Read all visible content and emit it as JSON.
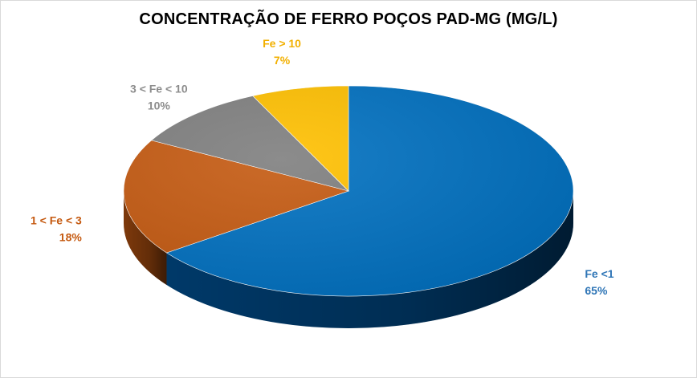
{
  "chart_data": {
    "type": "pie",
    "title": "CONCENTRAÇÃO DE FERRO POÇOS PAD-MG (MG/L)",
    "slices": [
      {
        "label": "Fe <1",
        "value": 65,
        "percent_label": "65%",
        "color": "#0070C0",
        "side_color": "#003C6E",
        "label_color": "#2E75B6"
      },
      {
        "label": "1 < Fe < 3",
        "value": 18,
        "percent_label": "18%",
        "color": "#C55A11",
        "side_color": "#843C0C",
        "label_color": "#C55A11"
      },
      {
        "label": "3 < Fe < 10",
        "value": 10,
        "percent_label": "10%",
        "color": "#7F7F7F",
        "side_color": "#595959",
        "label_color": "#8C8C8C"
      },
      {
        "label": "Fe > 10",
        "value": 7,
        "percent_label": "7%",
        "color": "#FFC000",
        "side_color": "#BF9000",
        "label_color": "#F2B000"
      }
    ],
    "legend": "none",
    "style": "3d-pie"
  }
}
